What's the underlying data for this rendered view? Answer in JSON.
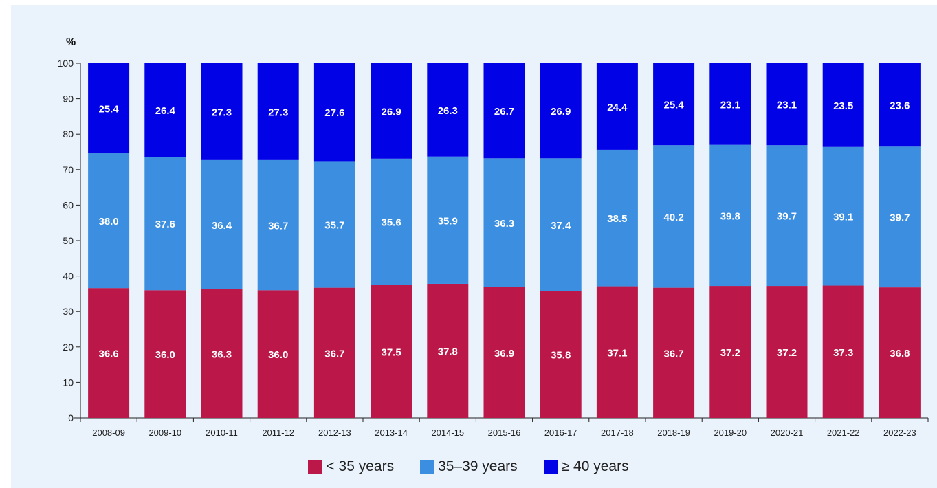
{
  "chart_data": {
    "type": "bar",
    "stacked": true,
    "ylabel": "%",
    "ylim": [
      0,
      100
    ],
    "yticks": [
      0,
      10,
      20,
      30,
      40,
      50,
      60,
      70,
      80,
      90,
      100
    ],
    "grid": false,
    "legend_position": "bottom",
    "categories": [
      "2008-09",
      "2009-10",
      "2010-11",
      "2011-12",
      "2012-13",
      "2013-14",
      "2014-15",
      "2015-16",
      "2016-17",
      "2017-18",
      "2018-19",
      "2019-20",
      "2020-21",
      "2021-22",
      "2022-23"
    ],
    "series": [
      {
        "name": "< 35 years",
        "color": "#bb1849",
        "values": [
          36.6,
          36.0,
          36.3,
          36.0,
          36.7,
          37.5,
          37.8,
          36.9,
          35.8,
          37.1,
          36.7,
          37.2,
          37.2,
          37.3,
          36.8
        ]
      },
      {
        "name": "35–39 years",
        "color": "#3b8ee0",
        "values": [
          38.0,
          37.6,
          36.4,
          36.7,
          35.7,
          35.6,
          35.9,
          36.3,
          37.4,
          38.5,
          40.2,
          39.8,
          39.7,
          39.1,
          39.7
        ]
      },
      {
        "name": "≥ 40 years",
        "color": "#0202e6",
        "values": [
          25.4,
          26.4,
          27.3,
          27.3,
          27.6,
          26.9,
          26.3,
          26.7,
          26.9,
          24.4,
          25.4,
          23.1,
          23.1,
          23.5,
          23.6
        ]
      }
    ]
  }
}
